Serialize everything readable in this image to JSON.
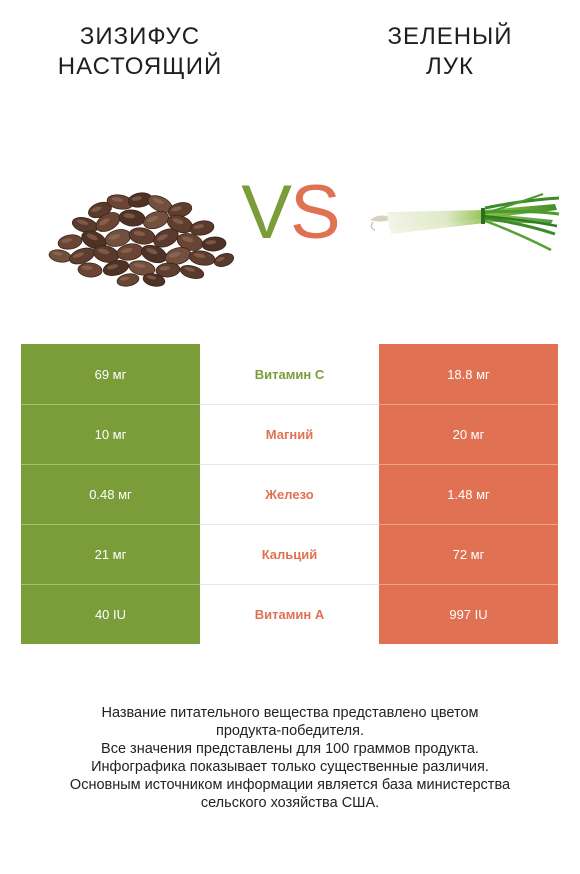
{
  "left_food": {
    "title_line1": "ЗИЗИФУС",
    "title_line2": "НАСТОЯЩИЙ"
  },
  "right_food": {
    "title_line1": "ЗЕЛЕНЫЙ",
    "title_line2": "ЛУК"
  },
  "vs": {
    "v": "V",
    "s": "S"
  },
  "colors": {
    "left": "#7a9d3a",
    "right": "#e07153"
  },
  "rows": [
    {
      "left": "69 мг",
      "nutrient": "Витамин C",
      "right": "18.8 мг",
      "winner": "left"
    },
    {
      "left": "10 мг",
      "nutrient": "Магний",
      "right": "20 мг",
      "winner": "right"
    },
    {
      "left": "0.48 мг",
      "nutrient": "Железо",
      "right": "1.48 мг",
      "winner": "right"
    },
    {
      "left": "21 мг",
      "nutrient": "Кальций",
      "right": "72 мг",
      "winner": "right"
    },
    {
      "left": "40 IU",
      "nutrient": "Витамин A",
      "right": "997 IU",
      "winner": "right"
    }
  ],
  "footer": {
    "line1": "Название питательного вещества представлено цветом",
    "line2": "продукта-победителя.",
    "line3": "Все значения представлены для 100 граммов продукта.",
    "line4": "Инфографика показывает только существенные различия.",
    "line5": "Основным источником информации является база министерства",
    "line6": "сельского хозяйства США."
  }
}
